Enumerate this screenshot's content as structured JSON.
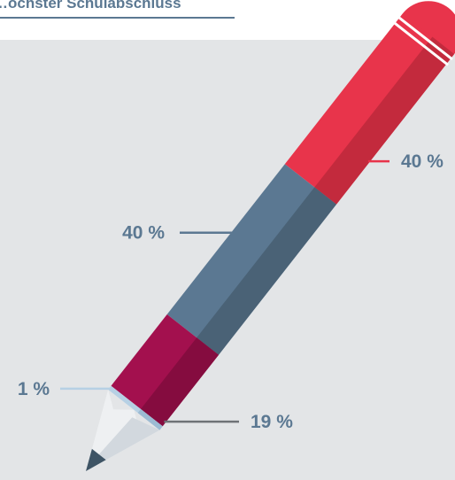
{
  "heading": "…ochster Schulabschluss",
  "colors": {
    "page_background": "#ffffff",
    "panel_background": "#e3e5e7",
    "heading_text": "#5b7892",
    "label_text": "#5b7892",
    "tip_lead": "#3e5465",
    "wood": "#eef0f2",
    "wood_shade": "#d2d8de",
    "outline": "#ffffff"
  },
  "chart_data": {
    "type": "pictograph",
    "title": "…ochster Schulabschluss",
    "unit": "%",
    "segments": [
      {
        "label": "40 %",
        "value": 40,
        "color": "#e8344b",
        "shade": "#c32a3d",
        "leader_color": "#e8344b"
      },
      {
        "label": "40 %",
        "value": 40,
        "color": "#5b7892",
        "shade": "#4a6276",
        "leader_color": "#5b7892"
      },
      {
        "label": "19 %",
        "value": 19,
        "color": "#a3104e",
        "shade": "#850c3f",
        "leader_color": "#6f7377"
      },
      {
        "label": "1 %",
        "value": 1,
        "color": "#b6d0e4",
        "shade": "#9cbbd3",
        "leader_color": "#b6d0e4"
      }
    ]
  }
}
